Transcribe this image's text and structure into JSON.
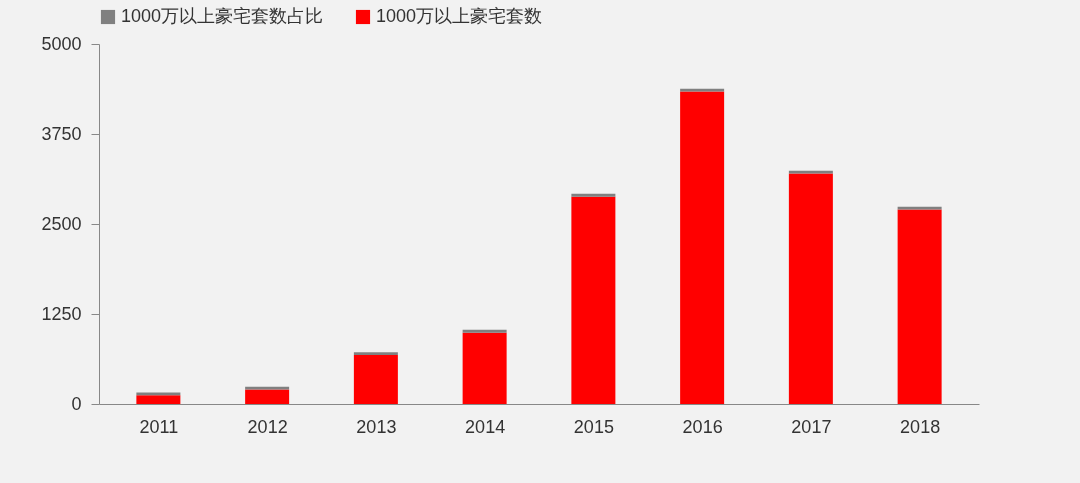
{
  "chart_data": {
    "type": "bar",
    "stacked": true,
    "categories": [
      "2011",
      "2012",
      "2013",
      "2014",
      "2015",
      "2016",
      "2017",
      "2018"
    ],
    "series": [
      {
        "name": "1000万以上豪宅套数",
        "color": "#ff0000",
        "values": [
          120,
          200,
          680,
          990,
          2880,
          4340,
          3200,
          2700
        ]
      },
      {
        "name": "1000万以上豪宅套数占比",
        "color": "#808080",
        "values": [
          40,
          40,
          40,
          40,
          40,
          40,
          40,
          40
        ]
      }
    ],
    "ylim": [
      0,
      5000
    ],
    "yticks": [
      0,
      1250,
      2500,
      3750,
      5000
    ],
    "grid": false,
    "legend": "top"
  }
}
